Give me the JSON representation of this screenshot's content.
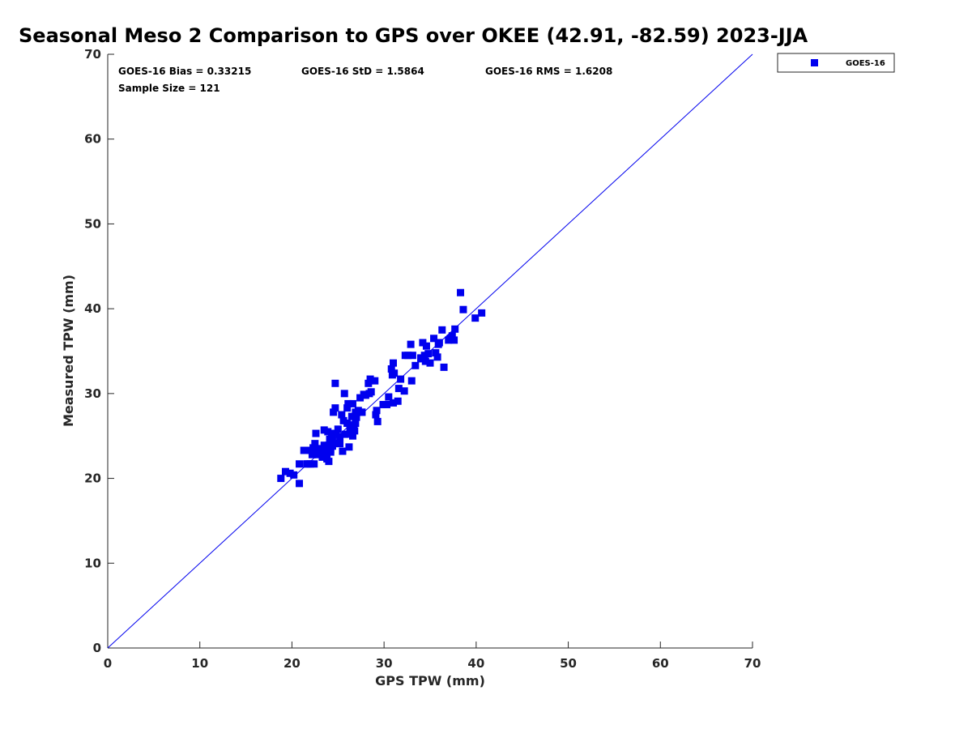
{
  "chart_data": {
    "type": "scatter",
    "title": "Seasonal Meso 2 Comparison to GPS over OKEE (42.91, -82.59) 2023-JJA",
    "xlabel": "GPS TPW (mm)",
    "ylabel": "Measured TPW (mm)",
    "xlim": [
      0,
      70
    ],
    "ylim": [
      0,
      70
    ],
    "xticks": [
      "0",
      "10",
      "20",
      "30",
      "40",
      "50",
      "60",
      "70"
    ],
    "yticks": [
      "0",
      "10",
      "20",
      "30",
      "40",
      "50",
      "60",
      "70"
    ],
    "legend": {
      "position": "outside-top-right",
      "entries": [
        "GOES-16"
      ]
    },
    "series_color": "#0000ee",
    "reference_line": {
      "label": "1:1",
      "from": [
        0,
        0
      ],
      "to": [
        70,
        70
      ]
    },
    "stats": {
      "bias": "GOES-16 Bias = 0.33215",
      "std": "GOES-16 StD = 1.5864",
      "rms": "GOES-16 RMS = 1.6208",
      "sample": "Sample Size = 121"
    },
    "series": [
      {
        "name": "GOES-16",
        "points": [
          [
            18.8,
            20.0
          ],
          [
            19.3,
            20.8
          ],
          [
            19.8,
            20.6
          ],
          [
            20.2,
            20.4
          ],
          [
            20.8,
            21.7
          ],
          [
            20.8,
            19.4
          ],
          [
            21.3,
            23.3
          ],
          [
            21.6,
            21.7
          ],
          [
            22.0,
            23.3
          ],
          [
            22.0,
            21.7
          ],
          [
            22.2,
            22.8
          ],
          [
            22.3,
            23.6
          ],
          [
            22.4,
            21.7
          ],
          [
            22.5,
            24.1
          ],
          [
            22.6,
            25.3
          ],
          [
            22.7,
            23.3
          ],
          [
            22.8,
            22.8
          ],
          [
            23.0,
            23.5
          ],
          [
            23.1,
            22.9
          ],
          [
            23.2,
            23.5
          ],
          [
            23.3,
            22.5
          ],
          [
            23.5,
            25.7
          ],
          [
            23.5,
            23.9
          ],
          [
            23.6,
            22.7
          ],
          [
            23.7,
            23.3
          ],
          [
            23.8,
            22.3
          ],
          [
            23.9,
            25.5
          ],
          [
            24.0,
            23.9
          ],
          [
            24.0,
            22.0
          ],
          [
            24.1,
            24.6
          ],
          [
            24.2,
            23.4
          ],
          [
            24.3,
            25.3
          ],
          [
            24.4,
            23.8
          ],
          [
            24.5,
            27.8
          ],
          [
            24.6,
            24.1
          ],
          [
            24.7,
            28.3
          ],
          [
            24.7,
            31.2
          ],
          [
            24.8,
            25.3
          ],
          [
            25.0,
            25.8
          ],
          [
            25.2,
            24.9
          ],
          [
            25.4,
            27.5
          ],
          [
            25.5,
            23.2
          ],
          [
            25.6,
            26.8
          ],
          [
            25.7,
            30.0
          ],
          [
            25.8,
            25.2
          ],
          [
            26.0,
            26.5
          ],
          [
            26.0,
            28.3
          ],
          [
            26.1,
            28.8
          ],
          [
            26.2,
            23.7
          ],
          [
            26.3,
            25.8
          ],
          [
            26.4,
            25.3
          ],
          [
            26.5,
            27.3
          ],
          [
            26.6,
            28.8
          ],
          [
            26.7,
            26.3
          ],
          [
            26.8,
            25.6
          ],
          [
            26.9,
            27.8
          ],
          [
            27.0,
            27.2
          ],
          [
            27.2,
            28.0
          ],
          [
            27.4,
            29.5
          ],
          [
            27.6,
            27.8
          ],
          [
            27.8,
            29.9
          ],
          [
            28.0,
            29.8
          ],
          [
            28.3,
            31.2
          ],
          [
            28.5,
            31.7
          ],
          [
            28.6,
            30.2
          ],
          [
            29.0,
            31.5
          ],
          [
            29.1,
            27.5
          ],
          [
            29.2,
            28.0
          ],
          [
            29.3,
            26.7
          ],
          [
            29.9,
            28.7
          ],
          [
            30.3,
            28.7
          ],
          [
            30.5,
            29.6
          ],
          [
            30.8,
            32.9
          ],
          [
            31.0,
            33.6
          ],
          [
            31.0,
            28.9
          ],
          [
            31.1,
            32.4
          ],
          [
            31.5,
            29.1
          ],
          [
            31.6,
            30.6
          ],
          [
            31.8,
            31.7
          ],
          [
            32.2,
            30.3
          ],
          [
            32.3,
            34.5
          ],
          [
            32.6,
            34.5
          ],
          [
            32.9,
            35.8
          ],
          [
            33.0,
            31.5
          ],
          [
            33.1,
            34.5
          ],
          [
            33.4,
            33.3
          ],
          [
            34.0,
            34.2
          ],
          [
            34.2,
            36.0
          ],
          [
            34.4,
            34.5
          ],
          [
            34.5,
            33.8
          ],
          [
            34.6,
            35.6
          ],
          [
            34.8,
            34.7
          ],
          [
            35.0,
            33.6
          ],
          [
            35.4,
            36.5
          ],
          [
            35.6,
            34.8
          ],
          [
            35.8,
            34.3
          ],
          [
            35.9,
            35.8
          ],
          [
            36.3,
            37.5
          ],
          [
            36.5,
            33.1
          ],
          [
            37.0,
            36.3
          ],
          [
            37.2,
            36.5
          ],
          [
            37.4,
            36.8
          ],
          [
            37.6,
            36.3
          ],
          [
            37.7,
            37.6
          ],
          [
            38.3,
            41.9
          ],
          [
            38.6,
            39.9
          ],
          [
            39.9,
            38.9
          ],
          [
            40.6,
            39.5
          ],
          [
            26.9,
            26.5
          ],
          [
            23.4,
            23.0
          ],
          [
            25.2,
            24.1
          ],
          [
            26.6,
            25.0
          ],
          [
            28.4,
            30.0
          ],
          [
            34.0,
            34.1
          ],
          [
            22.9,
            22.9
          ],
          [
            24.2,
            23.1
          ],
          [
            27.6,
            27.8
          ],
          [
            30.9,
            32.2
          ],
          [
            36.0,
            36.0
          ],
          [
            24.4,
            24.6
          ],
          [
            21.7,
            21.7
          ]
        ]
      }
    ]
  }
}
